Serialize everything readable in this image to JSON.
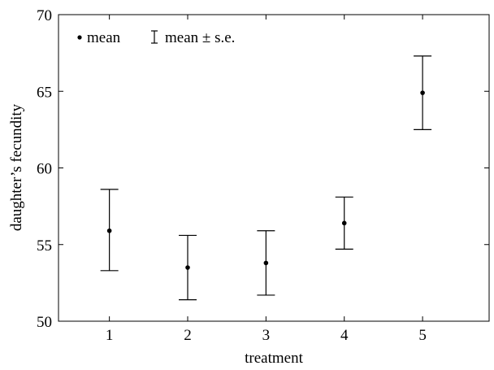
{
  "chart_data": {
    "type": "scatter",
    "title": "",
    "xlabel": "treatment",
    "ylabel": "daughter’s fecundity",
    "x": [
      1,
      2,
      3,
      4,
      5
    ],
    "xticks": [
      "1",
      "2",
      "3",
      "4",
      "5"
    ],
    "xlim": [
      0.35,
      5.85
    ],
    "ylim": [
      50,
      70
    ],
    "yticks": [
      "50",
      "55",
      "60",
      "65",
      "70"
    ],
    "series": [
      {
        "mean": [
          55.9,
          53.5,
          53.8,
          56.4,
          64.9
        ],
        "se_upper": [
          58.6,
          55.6,
          55.9,
          58.1,
          67.3
        ],
        "se_lower": [
          53.3,
          51.4,
          51.7,
          54.7,
          62.5
        ]
      }
    ],
    "legend": {
      "placement": "top-left",
      "mean_label": "mean",
      "se_label": "mean ± s.e."
    },
    "grid": false
  }
}
